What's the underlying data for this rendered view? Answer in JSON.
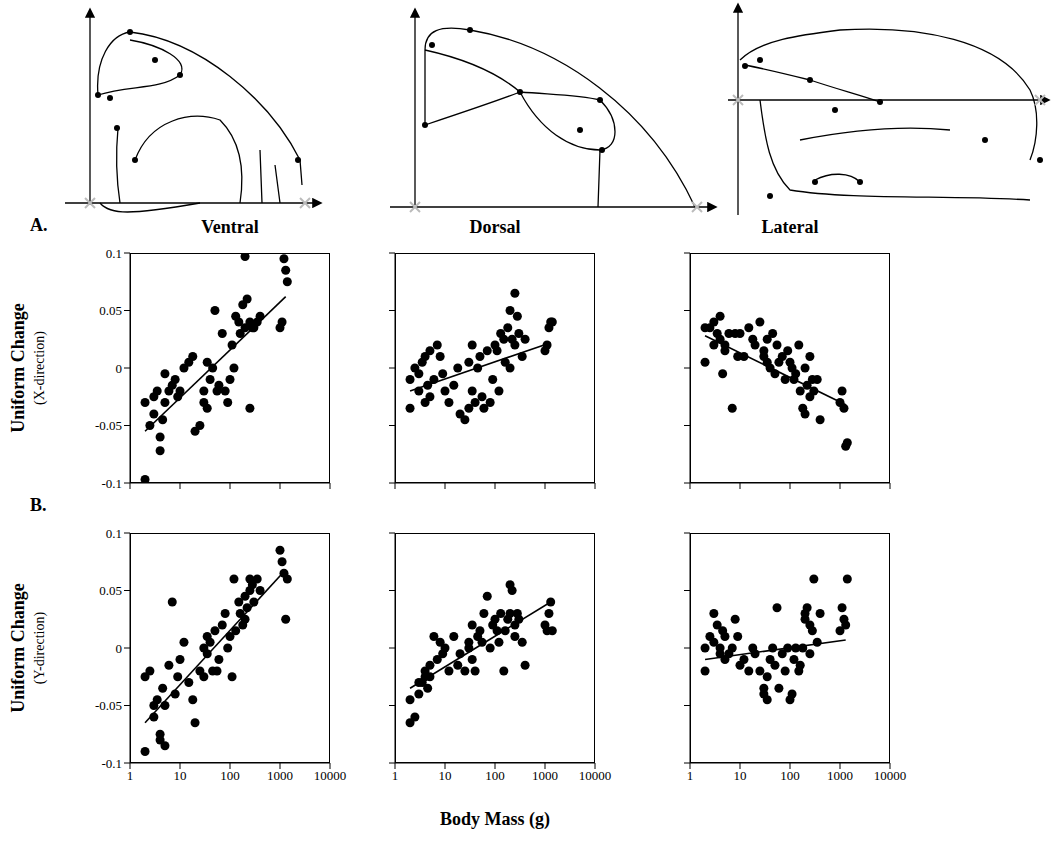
{
  "chart_data": [
    {
      "type": "scatter",
      "panel": "A.",
      "title": "Ventral",
      "ylabel": [
        "Uniform Change",
        "(X-direction)"
      ],
      "x": [
        2,
        2,
        2.5,
        3,
        3,
        3.5,
        4,
        4,
        4.5,
        5,
        5,
        6,
        7,
        8,
        9,
        10,
        12,
        15,
        18,
        20,
        25,
        30,
        30,
        35,
        35,
        40,
        45,
        50,
        55,
        60,
        70,
        80,
        90,
        100,
        110,
        120,
        130,
        150,
        160,
        180,
        200,
        200,
        220,
        250,
        250,
        280,
        300,
        350,
        400,
        1000,
        1100,
        1200,
        1300,
        1400
      ],
      "values": [
        -0.097,
        -0.03,
        -0.05,
        -0.04,
        -0.025,
        -0.02,
        -0.06,
        -0.072,
        -0.045,
        -0.03,
        -0.005,
        -0.02,
        -0.015,
        -0.01,
        -0.025,
        -0.02,
        0.0,
        0.005,
        0.01,
        -0.055,
        -0.05,
        -0.03,
        -0.02,
        -0.035,
        0.005,
        -0.01,
        0.0,
        0.05,
        -0.02,
        -0.015,
        0.03,
        -0.02,
        -0.03,
        -0.01,
        0.02,
        0.0,
        0.045,
        0.04,
        0.03,
        0.055,
        0.035,
        0.097,
        0.06,
        -0.035,
        0.04,
        0.035,
        0.035,
        0.04,
        0.045,
        0.035,
        0.04,
        0.095,
        0.085,
        0.075
      ],
      "fit": {
        "x": [
          2,
          1300
        ],
        "y": [
          -0.055,
          0.062
        ]
      },
      "xlim": [
        1,
        10000
      ],
      "xticks": [
        1,
        10,
        100,
        1000,
        10000
      ],
      "ylim": [
        -0.1,
        0.1
      ],
      "yticks": [
        -0.1,
        -0.05,
        0,
        0.05,
        0.1
      ],
      "log": "x",
      "grid": false,
      "tick_labels": "y",
      "color": "#000000",
      "marker": "circle"
    },
    {
      "type": "scatter",
      "title": "Dorsal",
      "x": [
        2,
        2,
        2.5,
        3,
        3,
        3.5,
        4,
        4,
        4.5,
        5,
        5,
        6,
        7,
        8,
        9,
        10,
        12,
        15,
        18,
        20,
        25,
        30,
        30,
        35,
        35,
        40,
        45,
        50,
        55,
        60,
        70,
        80,
        90,
        100,
        110,
        120,
        130,
        150,
        160,
        180,
        200,
        200,
        220,
        250,
        250,
        280,
        300,
        350,
        400,
        1000,
        1100,
        1200,
        1300,
        1400
      ],
      "values": [
        -0.035,
        -0.01,
        0.0,
        -0.005,
        -0.02,
        0.005,
        -0.03,
        0.01,
        -0.015,
        -0.025,
        0.015,
        -0.01,
        0.02,
        0.01,
        -0.005,
        -0.02,
        -0.03,
        -0.015,
        0.0,
        -0.04,
        -0.045,
        -0.035,
        0.005,
        -0.02,
        0.02,
        -0.03,
        0.0,
        0.01,
        -0.025,
        -0.035,
        0.015,
        -0.03,
        -0.01,
        0.02,
        0.015,
        -0.02,
        0.03,
        0.025,
        0.005,
        0.035,
        0.05,
        0.0,
        0.025,
        0.065,
        0.02,
        0.045,
        0.03,
        0.01,
        0.025,
        0.015,
        0.02,
        0.035,
        0.04,
        0.04
      ],
      "fit": {
        "x": [
          2,
          1300
        ],
        "y": [
          -0.02,
          0.022
        ]
      },
      "xlim": [
        1,
        10000
      ],
      "xticks": [
        1,
        10,
        100,
        1000,
        10000
      ],
      "ylim": [
        -0.1,
        0.1
      ],
      "yticks": [
        -0.1,
        -0.05,
        0,
        0.05,
        0.1
      ],
      "log": "x",
      "grid": false,
      "tick_labels": false,
      "color": "#000000",
      "marker": "circle"
    },
    {
      "type": "scatter",
      "title": "Lateral",
      "x": [
        2,
        2,
        2.5,
        3,
        3,
        3.5,
        4,
        4,
        4.5,
        5,
        5,
        6,
        7,
        8,
        9,
        10,
        12,
        15,
        18,
        20,
        25,
        30,
        30,
        35,
        35,
        40,
        45,
        50,
        55,
        60,
        70,
        80,
        90,
        100,
        110,
        120,
        130,
        150,
        160,
        180,
        200,
        200,
        220,
        250,
        250,
        280,
        300,
        350,
        400,
        1000,
        1100,
        1200,
        1300,
        1400
      ],
      "values": [
        0.005,
        0.035,
        0.035,
        0.04,
        0.02,
        0.03,
        0.025,
        0.045,
        -0.005,
        0.015,
        0.02,
        0.03,
        -0.035,
        0.03,
        0.01,
        0.03,
        0.01,
        0.035,
        0.025,
        0.02,
        0.04,
        0.01,
        0.015,
        0.005,
        0.025,
        0.0,
        0.03,
        -0.005,
        0.02,
        0.005,
        0.01,
        -0.01,
        0.015,
        0.005,
        0.0,
        -0.01,
        -0.005,
        0.02,
        -0.02,
        -0.035,
        0.0,
        -0.04,
        -0.015,
        -0.025,
        0.01,
        -0.01,
        -0.02,
        -0.01,
        -0.045,
        -0.03,
        -0.02,
        -0.035,
        -0.068,
        -0.065
      ],
      "fit": {
        "x": [
          2,
          1300
        ],
        "y": [
          0.028,
          -0.032
        ]
      },
      "xlim": [
        1,
        10000
      ],
      "xticks": [
        1,
        10,
        100,
        1000,
        10000
      ],
      "ylim": [
        -0.1,
        0.1
      ],
      "yticks": [
        -0.1,
        -0.05,
        0,
        0.05,
        0.1
      ],
      "log": "x",
      "grid": false,
      "tick_labels": false,
      "color": "#000000",
      "marker": "circle"
    },
    {
      "type": "scatter",
      "panel": "B.",
      "ylabel": [
        "Uniform Change",
        "(Y-direction)"
      ],
      "x": [
        2,
        2,
        2.5,
        3,
        3,
        3.5,
        4,
        4,
        4.5,
        5,
        5,
        6,
        7,
        8,
        9,
        10,
        12,
        15,
        18,
        20,
        25,
        30,
        30,
        35,
        35,
        40,
        45,
        50,
        55,
        60,
        70,
        80,
        90,
        100,
        110,
        120,
        130,
        150,
        160,
        180,
        200,
        200,
        220,
        250,
        250,
        280,
        300,
        350,
        400,
        1000,
        1100,
        1200,
        1300,
        1400
      ],
      "values": [
        -0.09,
        -0.025,
        -0.02,
        -0.05,
        -0.06,
        -0.045,
        -0.08,
        -0.075,
        -0.035,
        -0.05,
        -0.085,
        -0.015,
        0.04,
        -0.04,
        -0.025,
        -0.01,
        0.005,
        -0.03,
        -0.045,
        -0.065,
        -0.02,
        -0.025,
        0.0,
        -0.005,
        0.01,
        0.005,
        -0.02,
        0.015,
        -0.02,
        -0.01,
        0.02,
        0.03,
        0.0,
        0.01,
        -0.025,
        0.06,
        0.015,
        0.04,
        0.03,
        0.02,
        0.025,
        0.045,
        0.035,
        0.05,
        0.06,
        0.055,
        0.04,
        0.06,
        0.05,
        0.085,
        0.075,
        0.065,
        0.025,
        0.06
      ],
      "fit": {
        "x": [
          2,
          1300
        ],
        "y": [
          -0.065,
          0.068
        ]
      },
      "xlim": [
        1,
        10000
      ],
      "xticks": [
        1,
        10,
        100,
        1000,
        10000
      ],
      "ylim": [
        -0.1,
        0.1
      ],
      "yticks": [
        -0.1,
        -0.05,
        0,
        0.05,
        0.1
      ],
      "log": "x",
      "grid": false,
      "tick_labels": true,
      "color": "#000000",
      "marker": "circle"
    },
    {
      "type": "scatter",
      "xlabel": "Body Mass (g)",
      "x": [
        2,
        2,
        2.5,
        3,
        3,
        3.5,
        4,
        4,
        4.5,
        5,
        5,
        6,
        7,
        8,
        9,
        10,
        12,
        15,
        18,
        20,
        25,
        30,
        30,
        35,
        35,
        40,
        45,
        50,
        55,
        60,
        70,
        80,
        90,
        100,
        110,
        120,
        130,
        150,
        160,
        180,
        200,
        200,
        220,
        250,
        250,
        280,
        300,
        350,
        400,
        1000,
        1100,
        1200,
        1300,
        1400
      ],
      "values": [
        -0.065,
        -0.045,
        -0.06,
        -0.04,
        -0.03,
        -0.03,
        -0.025,
        -0.02,
        -0.035,
        -0.025,
        -0.015,
        0.01,
        -0.01,
        0.005,
        -0.005,
        0.0,
        -0.02,
        0.01,
        -0.015,
        -0.005,
        -0.02,
        0.0,
        0.005,
        -0.01,
        0.02,
        -0.02,
        0.01,
        0.015,
        0.005,
        0.03,
        0.045,
        0.0,
        0.02,
        0.025,
        0.015,
        0.005,
        0.03,
        -0.02,
        0.015,
        0.025,
        0.03,
        0.055,
        0.05,
        0.02,
        0.01,
        0.03,
        0.025,
        0.005,
        -0.015,
        0.02,
        0.015,
        0.03,
        0.04,
        0.015
      ],
      "fit": {
        "x": [
          2,
          1300
        ],
        "y": [
          -0.035,
          0.04
        ]
      },
      "xlim": [
        1,
        10000
      ],
      "xticks": [
        1,
        10,
        100,
        1000,
        10000
      ],
      "ylim": [
        -0.1,
        0.1
      ],
      "yticks": [
        -0.1,
        -0.05,
        0,
        0.05,
        0.1
      ],
      "log": "x",
      "grid": false,
      "tick_labels": "x",
      "color": "#000000",
      "marker": "circle"
    },
    {
      "type": "scatter",
      "x": [
        2,
        2,
        2.5,
        3,
        3,
        3.5,
        4,
        4,
        4.5,
        5,
        5,
        6,
        7,
        8,
        9,
        10,
        12,
        15,
        18,
        20,
        25,
        30,
        30,
        35,
        35,
        40,
        45,
        50,
        55,
        60,
        70,
        80,
        90,
        100,
        110,
        120,
        130,
        150,
        160,
        180,
        200,
        200,
        220,
        250,
        250,
        280,
        300,
        350,
        400,
        1000,
        1100,
        1200,
        1300,
        1400
      ],
      "values": [
        0.0,
        -0.02,
        0.01,
        0.03,
        0.005,
        0.02,
        0.0,
        -0.005,
        0.015,
        0.01,
        -0.01,
        -0.005,
        0.0,
        0.025,
        0.01,
        -0.015,
        -0.01,
        -0.02,
        0.0,
        -0.005,
        -0.02,
        -0.035,
        -0.04,
        -0.025,
        -0.045,
        -0.01,
        0.0,
        -0.015,
        0.035,
        -0.035,
        -0.005,
        -0.02,
        0.0,
        -0.045,
        -0.04,
        -0.01,
        0.0,
        -0.02,
        -0.015,
        0.0,
        0.03,
        0.025,
        0.035,
        0.02,
        -0.005,
        0.015,
        0.06,
        0.005,
        0.03,
        0.015,
        0.035,
        0.025,
        0.02,
        0.06
      ],
      "fit": {
        "x": [
          2,
          1300
        ],
        "y": [
          -0.01,
          0.007
        ]
      },
      "xlim": [
        1,
        10000
      ],
      "xticks": [
        1,
        10,
        100,
        1000,
        10000
      ],
      "ylim": [
        -0.1,
        0.1
      ],
      "yticks": [
        -0.1,
        -0.05,
        0,
        0.05,
        0.1
      ],
      "log": "x",
      "grid": false,
      "tick_labels": "x",
      "color": "#000000",
      "marker": "circle"
    }
  ]
}
